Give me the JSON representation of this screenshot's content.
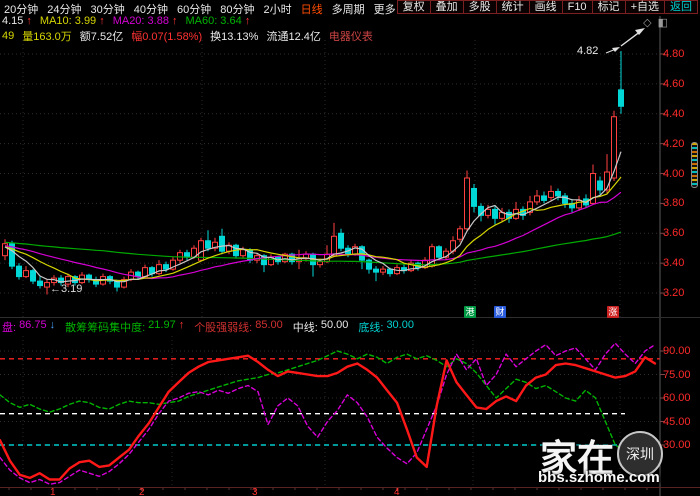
{
  "toolbar": {
    "periods": [
      "20分钟",
      "24分钟",
      "30分钟",
      "40分钟",
      "60分钟",
      "80分钟",
      "2小时",
      "日线",
      "多周期",
      "更多 >"
    ],
    "active_period": "日线",
    "actions": [
      "复权",
      "叠加",
      "多股",
      "统计",
      "画线",
      "F10",
      "标记",
      "+自选",
      "返回"
    ]
  },
  "ma_row": {
    "items": [
      {
        "text": "4.15",
        "arrow": "↑"
      },
      {
        "text": "MA10: 3.99",
        "arrow": "↑"
      },
      {
        "text": "MA20: 3.88",
        "arrow": "↑"
      },
      {
        "text": "MA60: 3.64",
        "arrow": "↑"
      }
    ]
  },
  "info_row": {
    "items": [
      "49",
      "量163.0万",
      "额7.52亿",
      "幅0.07(1.58%)",
      "换13.13%",
      "流通12.4亿",
      "电器仪表"
    ]
  },
  "icons": {
    "diamond": "◇",
    "panel": "◧"
  },
  "main_chart": {
    "y_labels": [
      "4.80",
      "4.60",
      "4.40",
      "4.20",
      "4.00",
      "3.80",
      "3.60",
      "3.40",
      "3.20"
    ],
    "price_top": 4.8,
    "price_step": 0.2,
    "annotations": {
      "high": "4.82",
      "low": "←3.19"
    },
    "badges": [
      {
        "text": "港",
        "bg": "#009944"
      },
      {
        "text": "财",
        "bg": "#2b5cdd"
      },
      {
        "text": "涨",
        "bg": "#cc2222"
      }
    ],
    "colors": {
      "up": "#ff4040",
      "down": "#00d8d8",
      "ma5": "#c8c8c8",
      "ma10": "#d6d600",
      "ma20": "#d400d4",
      "ma60": "#00aa00"
    },
    "candles": [
      [
        3.45,
        3.56,
        3.42,
        3.53
      ],
      [
        3.53,
        3.55,
        3.36,
        3.38
      ],
      [
        3.38,
        3.4,
        3.29,
        3.31
      ],
      [
        3.31,
        3.38,
        3.3,
        3.35
      ],
      [
        3.35,
        3.36,
        3.26,
        3.28
      ],
      [
        3.28,
        3.31,
        3.23,
        3.25
      ],
      [
        3.24,
        3.29,
        3.19,
        3.27
      ],
      [
        3.27,
        3.32,
        3.25,
        3.3
      ],
      [
        3.3,
        3.32,
        3.25,
        3.27
      ],
      [
        3.26,
        3.33,
        3.24,
        3.31
      ],
      [
        3.31,
        3.32,
        3.25,
        3.27
      ],
      [
        3.27,
        3.34,
        3.26,
        3.32
      ],
      [
        3.32,
        3.33,
        3.27,
        3.29
      ],
      [
        3.29,
        3.31,
        3.24,
        3.26
      ],
      [
        3.26,
        3.33,
        3.25,
        3.31
      ],
      [
        3.31,
        3.32,
        3.26,
        3.28
      ],
      [
        3.28,
        3.29,
        3.21,
        3.24
      ],
      [
        3.24,
        3.31,
        3.23,
        3.29
      ],
      [
        3.29,
        3.36,
        3.28,
        3.34
      ],
      [
        3.34,
        3.35,
        3.29,
        3.31
      ],
      [
        3.31,
        3.39,
        3.3,
        3.37
      ],
      [
        3.37,
        3.38,
        3.31,
        3.33
      ],
      [
        3.33,
        3.42,
        3.32,
        3.39
      ],
      [
        3.39,
        3.41,
        3.34,
        3.36
      ],
      [
        3.36,
        3.44,
        3.35,
        3.42
      ],
      [
        3.42,
        3.49,
        3.4,
        3.47
      ],
      [
        3.47,
        3.49,
        3.42,
        3.44
      ],
      [
        3.44,
        3.52,
        3.43,
        3.5
      ],
      [
        3.42,
        3.57,
        3.41,
        3.55
      ],
      [
        3.55,
        3.62,
        3.48,
        3.5
      ],
      [
        3.5,
        3.57,
        3.48,
        3.54
      ],
      [
        3.58,
        3.63,
        3.46,
        3.48
      ],
      [
        3.48,
        3.54,
        3.46,
        3.52
      ],
      [
        3.52,
        3.53,
        3.43,
        3.45
      ],
      [
        3.45,
        3.51,
        3.43,
        3.49
      ],
      [
        3.49,
        3.5,
        3.4,
        3.42
      ],
      [
        3.42,
        3.47,
        3.4,
        3.45
      ],
      [
        3.45,
        3.46,
        3.34,
        3.39
      ],
      [
        3.39,
        3.46,
        3.38,
        3.44
      ],
      [
        3.44,
        3.45,
        3.39,
        3.41
      ],
      [
        3.41,
        3.47,
        3.4,
        3.46
      ],
      [
        3.46,
        3.47,
        3.39,
        3.41
      ],
      [
        3.41,
        3.49,
        3.36,
        3.43
      ],
      [
        3.43,
        3.48,
        3.41,
        3.46
      ],
      [
        3.46,
        3.47,
        3.31,
        3.39
      ],
      [
        3.39,
        3.43,
        3.37,
        3.41
      ],
      [
        3.41,
        3.52,
        3.4,
        3.46
      ],
      [
        3.45,
        3.67,
        3.44,
        3.58
      ],
      [
        3.6,
        3.63,
        3.48,
        3.5
      ],
      [
        3.5,
        3.52,
        3.44,
        3.46
      ],
      [
        3.46,
        3.53,
        3.45,
        3.51
      ],
      [
        3.51,
        3.52,
        3.36,
        3.42
      ],
      [
        3.42,
        3.43,
        3.33,
        3.36
      ],
      [
        3.36,
        3.38,
        3.28,
        3.34
      ],
      [
        3.34,
        3.38,
        3.32,
        3.36
      ],
      [
        3.36,
        3.37,
        3.31,
        3.33
      ],
      [
        3.33,
        3.39,
        3.32,
        3.37
      ],
      [
        3.37,
        3.39,
        3.33,
        3.35
      ],
      [
        3.35,
        3.42,
        3.34,
        3.4
      ],
      [
        3.4,
        3.41,
        3.35,
        3.37
      ],
      [
        3.37,
        3.44,
        3.36,
        3.42
      ],
      [
        3.38,
        3.53,
        3.37,
        3.51
      ],
      [
        3.51,
        3.52,
        3.42,
        3.44
      ],
      [
        3.44,
        3.5,
        3.42,
        3.48
      ],
      [
        3.48,
        3.58,
        3.46,
        3.55
      ],
      [
        3.56,
        3.65,
        3.54,
        3.63
      ],
      [
        3.63,
        4.02,
        3.61,
        3.97
      ],
      [
        3.9,
        3.93,
        3.74,
        3.78
      ],
      [
        3.78,
        3.8,
        3.68,
        3.72
      ],
      [
        3.72,
        3.79,
        3.7,
        3.76
      ],
      [
        3.76,
        3.78,
        3.66,
        3.7
      ],
      [
        3.7,
        3.77,
        3.68,
        3.74
      ],
      [
        3.74,
        3.76,
        3.67,
        3.7
      ],
      [
        3.7,
        3.81,
        3.69,
        3.76
      ],
      [
        3.76,
        3.78,
        3.69,
        3.72
      ],
      [
        3.74,
        3.85,
        3.72,
        3.81
      ],
      [
        3.81,
        3.89,
        3.79,
        3.85
      ],
      [
        3.85,
        3.88,
        3.8,
        3.82
      ],
      [
        3.84,
        3.92,
        3.82,
        3.88
      ],
      [
        3.88,
        3.9,
        3.82,
        3.85
      ],
      [
        3.85,
        3.87,
        3.77,
        3.8
      ],
      [
        3.8,
        3.83,
        3.74,
        3.77
      ],
      [
        3.77,
        3.85,
        3.75,
        3.82
      ],
      [
        3.83,
        3.86,
        3.77,
        3.79
      ],
      [
        3.8,
        4.06,
        3.79,
        4.0
      ],
      [
        3.95,
        3.98,
        3.86,
        3.89
      ],
      [
        3.89,
        4.13,
        3.87,
        4.01
      ],
      [
        3.97,
        4.42,
        3.95,
        4.38
      ],
      [
        4.56,
        4.82,
        4.4,
        4.45
      ]
    ]
  },
  "lower_panel": {
    "legend": [
      {
        "label": "盘:",
        "value": "86.75",
        "arrow": "↓"
      },
      {
        "label": "散筹筹码集中度:",
        "value": "21.97",
        "arrow": "↑"
      },
      {
        "label": "个股强弱线:",
        "value": "85.00",
        "arrow": ""
      },
      {
        "label": "中线:",
        "value": "50.00",
        "arrow": ""
      },
      {
        "label": "底线:",
        "value": "30.00",
        "arrow": ""
      }
    ],
    "y_labels": [
      "90.00",
      "75.00",
      "60.00",
      "45.00",
      "30.00"
    ],
    "y_values": [
      90,
      75,
      60,
      45,
      30
    ],
    "ref_lines": [
      {
        "value": 85,
        "color": "#ff2222",
        "full_width": true
      },
      {
        "value": 50,
        "color": "#ffffff",
        "full_width": false
      },
      {
        "value": 30,
        "color": "#00cccc",
        "full_width": false
      }
    ],
    "months": [
      "1",
      "2",
      "3",
      "4"
    ],
    "series": [
      {
        "name": "main-force-line",
        "color": "#ff1818",
        "width": 2.4,
        "dash": "",
        "values": [
          33,
          20,
          11,
          9,
          12,
          8,
          8,
          15,
          19,
          20,
          16,
          17,
          22,
          27,
          36,
          44,
          54,
          64,
          70,
          76,
          80,
          83,
          84,
          85,
          86,
          87,
          83,
          78,
          74,
          77,
          76,
          75,
          74,
          74,
          76,
          80,
          82,
          78,
          73,
          65,
          57,
          40,
          22,
          16,
          55,
          84,
          70,
          62,
          54,
          53,
          58,
          61,
          58,
          68,
          73,
          75,
          81,
          82,
          81,
          79,
          77,
          75,
          73,
          74,
          77,
          86,
          82
        ]
      },
      {
        "name": "strength-line",
        "color": "#d800d8",
        "width": 1.4,
        "dash": "4 3",
        "values": [
          22,
          14,
          9,
          6,
          8,
          5,
          6,
          10,
          14,
          12,
          10,
          13,
          18,
          24,
          32,
          40,
          50,
          58,
          60,
          63,
          64,
          62,
          65,
          63,
          66,
          68,
          64,
          43,
          55,
          60,
          55,
          42,
          35,
          45,
          52,
          62,
          57,
          48,
          35,
          28,
          22,
          18,
          25,
          40,
          55,
          75,
          88,
          78,
          85,
          68,
          75,
          88,
          80,
          85,
          90,
          94,
          87,
          90,
          92,
          85,
          78,
          88,
          95,
          88,
          82,
          90,
          94
        ]
      },
      {
        "name": "concentration-line",
        "color": "#00b400",
        "width": 1.4,
        "dash": "4 3",
        "values": [
          62,
          57,
          54,
          56,
          53,
          51,
          53,
          56,
          58,
          57,
          54,
          53,
          56,
          58,
          57,
          57,
          56,
          57,
          58,
          61,
          63,
          65,
          67,
          69,
          71,
          72,
          73,
          75,
          76,
          78,
          80,
          82,
          84,
          87,
          90,
          88,
          85,
          88,
          86,
          82,
          86,
          88,
          85,
          87,
          84,
          80,
          85,
          82,
          76,
          68,
          60,
          66,
          72,
          70,
          66,
          68,
          64,
          60,
          58,
          65,
          60,
          45,
          30,
          26,
          23,
          22,
          22
        ]
      }
    ]
  },
  "watermark": {
    "line1": "家在",
    "bubble": "深圳",
    "line2": "bbs.szhome.com"
  }
}
